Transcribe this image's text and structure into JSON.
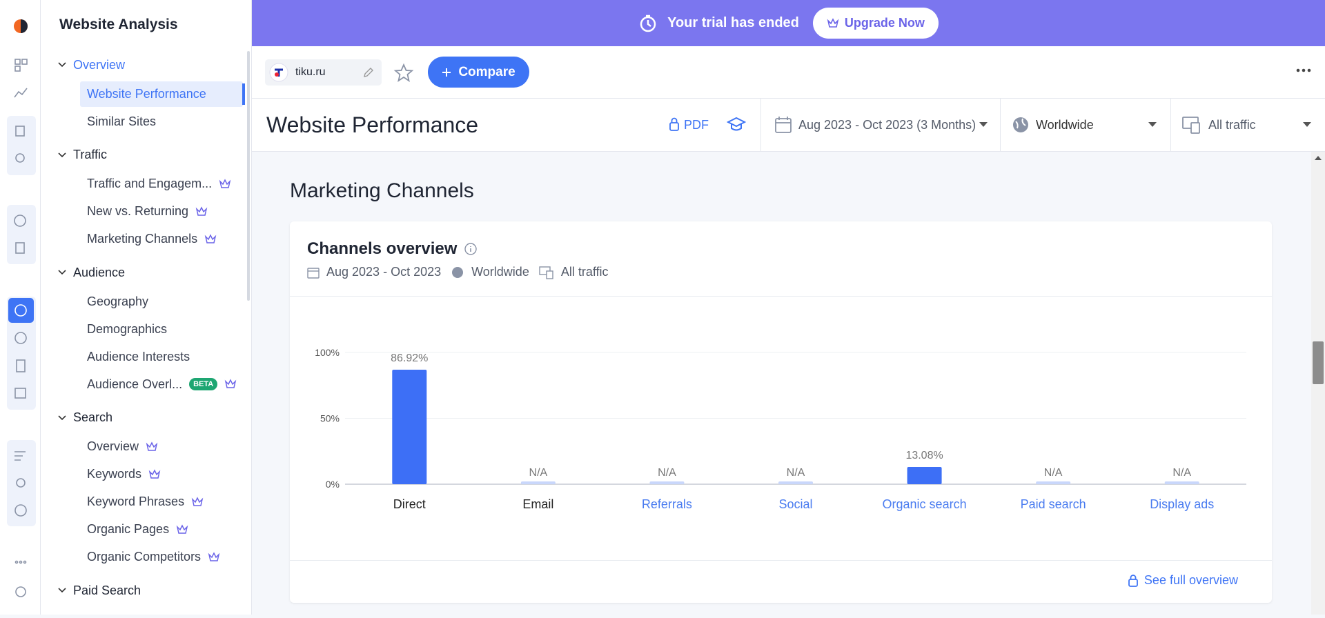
{
  "banner": {
    "message": "Your trial has ended",
    "button": "Upgrade Now"
  },
  "toolbar": {
    "site": "tiku.ru",
    "compare": "Compare"
  },
  "header": {
    "title": "Website Performance",
    "pdf": "PDF",
    "date_range": "Aug 2023 - Oct 2023 (3 Months)",
    "country": "Worldwide",
    "traffic": "All traffic"
  },
  "nav": {
    "title": "Website Analysis",
    "sections": [
      {
        "label": "Overview",
        "active": true,
        "items": [
          {
            "label": "Website Performance",
            "active": true
          },
          {
            "label": "Similar Sites"
          }
        ]
      },
      {
        "label": "Traffic",
        "items": [
          {
            "label": "Traffic and Engagem...",
            "premium": true
          },
          {
            "label": "New vs. Returning",
            "premium": true
          },
          {
            "label": "Marketing Channels",
            "premium": true
          }
        ]
      },
      {
        "label": "Audience",
        "items": [
          {
            "label": "Geography"
          },
          {
            "label": "Demographics"
          },
          {
            "label": "Audience Interests"
          },
          {
            "label": "Audience Overl...",
            "badge": "BETA",
            "premium": true
          }
        ]
      },
      {
        "label": "Search",
        "items": [
          {
            "label": "Overview",
            "premium": true
          },
          {
            "label": "Keywords",
            "premium": true
          },
          {
            "label": "Keyword Phrases",
            "premium": true
          },
          {
            "label": "Organic Pages",
            "premium": true
          },
          {
            "label": "Organic Competitors",
            "premium": true
          }
        ]
      },
      {
        "label": "Paid Search",
        "items": []
      }
    ]
  },
  "section_title": "Marketing Channels",
  "card": {
    "title": "Channels overview",
    "date_range": "Aug 2023 - Oct 2023",
    "country": "Worldwide",
    "traffic": "All traffic",
    "footer_link": "See full overview"
  },
  "chart_data": {
    "type": "bar",
    "categories": [
      "Direct",
      "Email",
      "Referrals",
      "Social",
      "Organic search",
      "Paid search",
      "Display ads"
    ],
    "category_colors": [
      "#222222",
      "#222222",
      "#4a7cf0",
      "#4a7cf0",
      "#4a7cf0",
      "#4a7cf0",
      "#4a7cf0"
    ],
    "values": [
      86.92,
      null,
      null,
      null,
      13.08,
      null,
      null
    ],
    "value_labels": [
      "86.92%",
      "N/A",
      "N/A",
      "N/A",
      "13.08%",
      "N/A",
      "N/A"
    ],
    "color": "#3d6ff6",
    "ylim": [
      0,
      100
    ],
    "yticks": [
      {
        "value": 0,
        "label": "0%"
      },
      {
        "value": 50,
        "label": "50%"
      },
      {
        "value": 100,
        "label": "100%"
      }
    ],
    "grid": true
  }
}
